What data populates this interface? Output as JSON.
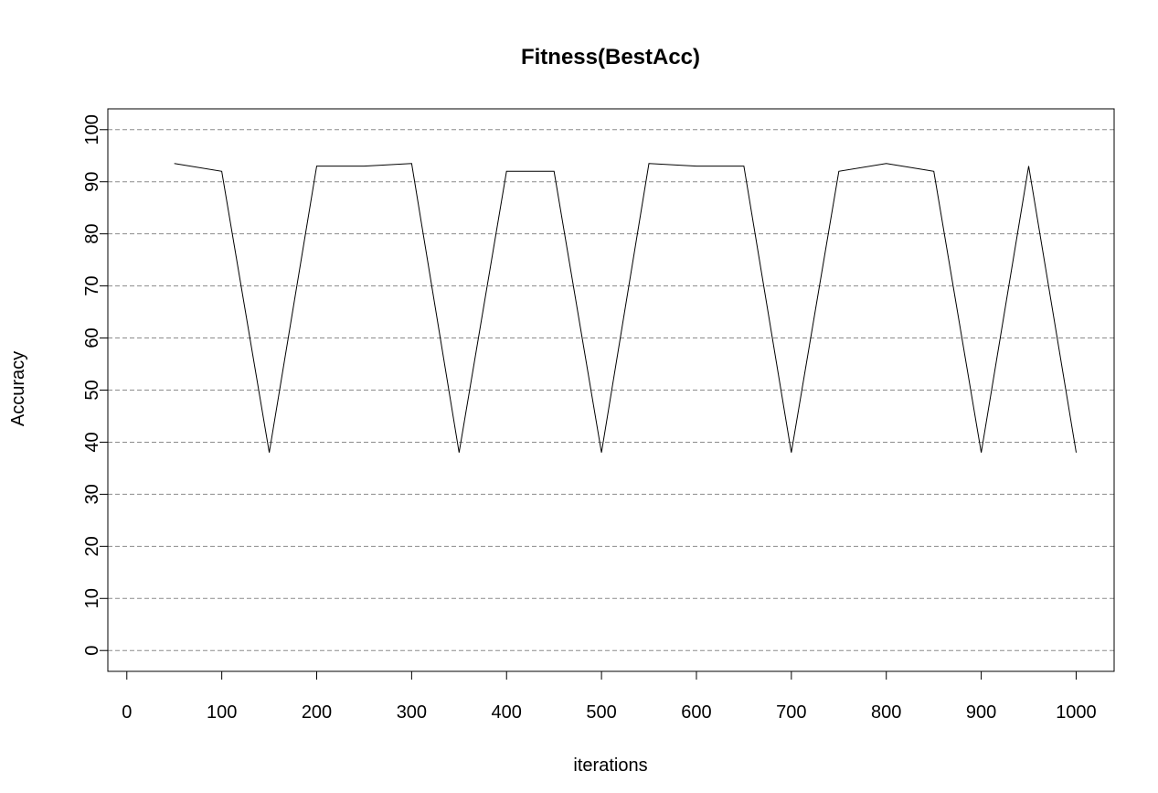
{
  "chart_data": {
    "type": "line",
    "title": "Fitness(BestAcc)",
    "xlabel": "iterations",
    "ylabel": "Accuracy",
    "xlim": [
      -20,
      1040
    ],
    "ylim": [
      -4,
      104
    ],
    "x_ticks": [
      0,
      100,
      200,
      300,
      400,
      500,
      600,
      700,
      800,
      900,
      1000
    ],
    "y_ticks": [
      0,
      10,
      20,
      30,
      40,
      50,
      60,
      70,
      80,
      90,
      100
    ],
    "grid": {
      "horizontal": true,
      "style": "dashed"
    },
    "series": [
      {
        "x": [
          50,
          100,
          150,
          200,
          250,
          300,
          350,
          400,
          450,
          500,
          550,
          600,
          650,
          700,
          750,
          800,
          850,
          900,
          950,
          1000
        ],
        "y": [
          93.5,
          92,
          38,
          93,
          93,
          93.5,
          38,
          92,
          92,
          38,
          93.5,
          93,
          93,
          38,
          92,
          93.5,
          92,
          38,
          93,
          38
        ],
        "color": "#000000"
      }
    ]
  }
}
